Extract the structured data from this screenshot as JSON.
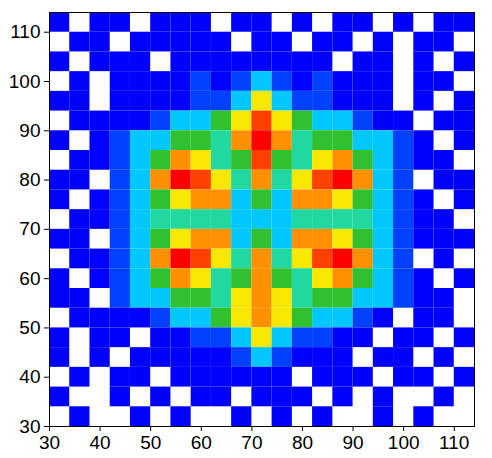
{
  "chart_data": {
    "type": "heatmap",
    "x": [
      32,
      36,
      40,
      44,
      48,
      52,
      56,
      60,
      64,
      68,
      72,
      76,
      80,
      84,
      88,
      92,
      96,
      100,
      104,
      108,
      112
    ],
    "y": [
      112,
      108,
      104,
      100,
      96,
      92,
      88,
      84,
      80,
      76,
      72,
      68,
      64,
      60,
      56,
      52,
      48,
      44,
      40,
      36,
      32
    ],
    "cells": [
      [
        1,
        0,
        1,
        1,
        0,
        1,
        1,
        1,
        0,
        1,
        1,
        0,
        1,
        0,
        1,
        1,
        0,
        1,
        0,
        1,
        1
      ],
      [
        0,
        1,
        1,
        0,
        1,
        1,
        1,
        1,
        1,
        0,
        1,
        1,
        0,
        1,
        1,
        0,
        1,
        0,
        1,
        1,
        0
      ],
      [
        1,
        0,
        1,
        1,
        1,
        0,
        1,
        1,
        1,
        1,
        1,
        1,
        1,
        1,
        0,
        1,
        1,
        0,
        1,
        0,
        1
      ],
      [
        0,
        1,
        0,
        1,
        1,
        1,
        1,
        2,
        1,
        2,
        3,
        2,
        1,
        2,
        1,
        1,
        1,
        0,
        1,
        1,
        0
      ],
      [
        1,
        1,
        0,
        1,
        1,
        1,
        1,
        2,
        2,
        3,
        6,
        3,
        2,
        2,
        1,
        1,
        1,
        0,
        1,
        0,
        1
      ],
      [
        0,
        1,
        1,
        1,
        1,
        2,
        3,
        3,
        5,
        6,
        8,
        6,
        5,
        3,
        3,
        2,
        1,
        1,
        0,
        1,
        1
      ],
      [
        1,
        0,
        1,
        2,
        3,
        3,
        5,
        5,
        4,
        7,
        9,
        7,
        4,
        5,
        5,
        3,
        3,
        2,
        1,
        0,
        1
      ],
      [
        0,
        1,
        1,
        2,
        3,
        5,
        7,
        6,
        4,
        5,
        8,
        5,
        4,
        6,
        7,
        5,
        3,
        2,
        1,
        1,
        0
      ],
      [
        1,
        1,
        0,
        2,
        3,
        7,
        9,
        8,
        6,
        4,
        7,
        4,
        6,
        8,
        9,
        7,
        3,
        2,
        0,
        1,
        1
      ],
      [
        1,
        0,
        1,
        2,
        3,
        5,
        6,
        7,
        7,
        3,
        5,
        3,
        7,
        7,
        6,
        5,
        3,
        2,
        1,
        0,
        1
      ],
      [
        0,
        1,
        1,
        2,
        3,
        4,
        4,
        4,
        4,
        3,
        3,
        3,
        4,
        4,
        4,
        4,
        3,
        2,
        1,
        1,
        0
      ],
      [
        1,
        1,
        0,
        2,
        3,
        5,
        6,
        7,
        7,
        3,
        5,
        3,
        7,
        7,
        6,
        5,
        3,
        2,
        1,
        1,
        1
      ],
      [
        0,
        1,
        1,
        2,
        3,
        7,
        9,
        8,
        6,
        4,
        7,
        4,
        6,
        8,
        9,
        7,
        3,
        2,
        0,
        1,
        0
      ],
      [
        1,
        0,
        1,
        2,
        3,
        5,
        7,
        6,
        4,
        5,
        7,
        5,
        4,
        6,
        7,
        5,
        3,
        2,
        1,
        0,
        1
      ],
      [
        1,
        1,
        0,
        2,
        3,
        3,
        5,
        5,
        4,
        6,
        7,
        6,
        4,
        5,
        5,
        3,
        3,
        2,
        1,
        1,
        0
      ],
      [
        0,
        1,
        1,
        1,
        1,
        2,
        3,
        3,
        5,
        6,
        7,
        6,
        5,
        3,
        3,
        2,
        1,
        0,
        1,
        1,
        0
      ],
      [
        1,
        0,
        1,
        1,
        0,
        1,
        1,
        2,
        2,
        3,
        6,
        3,
        2,
        2,
        1,
        1,
        0,
        1,
        1,
        0,
        1
      ],
      [
        1,
        0,
        1,
        0,
        1,
        1,
        1,
        1,
        1,
        2,
        3,
        2,
        1,
        1,
        1,
        0,
        1,
        1,
        0,
        1,
        0
      ],
      [
        0,
        1,
        0,
        1,
        1,
        0,
        1,
        1,
        1,
        1,
        1,
        1,
        0,
        1,
        1,
        1,
        0,
        1,
        1,
        0,
        1
      ],
      [
        1,
        0,
        0,
        1,
        0,
        1,
        0,
        1,
        1,
        0,
        1,
        1,
        1,
        0,
        1,
        0,
        1,
        0,
        0,
        1,
        0
      ],
      [
        0,
        1,
        0,
        0,
        1,
        0,
        1,
        0,
        0,
        1,
        0,
        1,
        0,
        1,
        0,
        0,
        1,
        0,
        1,
        0,
        0
      ]
    ],
    "zlim": [
      1,
      9
    ],
    "colors": [
      "#0000ff",
      "#0040ff",
      "#00c8ff",
      "#20d8a0",
      "#30c030",
      "#f8e800",
      "#ff9000",
      "#ff4000",
      "#ff0000"
    ],
    "xlim": [
      30,
      114
    ],
    "ylim": [
      30,
      114
    ],
    "xticks": [
      30,
      40,
      50,
      60,
      70,
      80,
      90,
      100,
      110
    ],
    "yticks": [
      30,
      40,
      50,
      60,
      70,
      80,
      90,
      100,
      110
    ],
    "grid": false
  }
}
